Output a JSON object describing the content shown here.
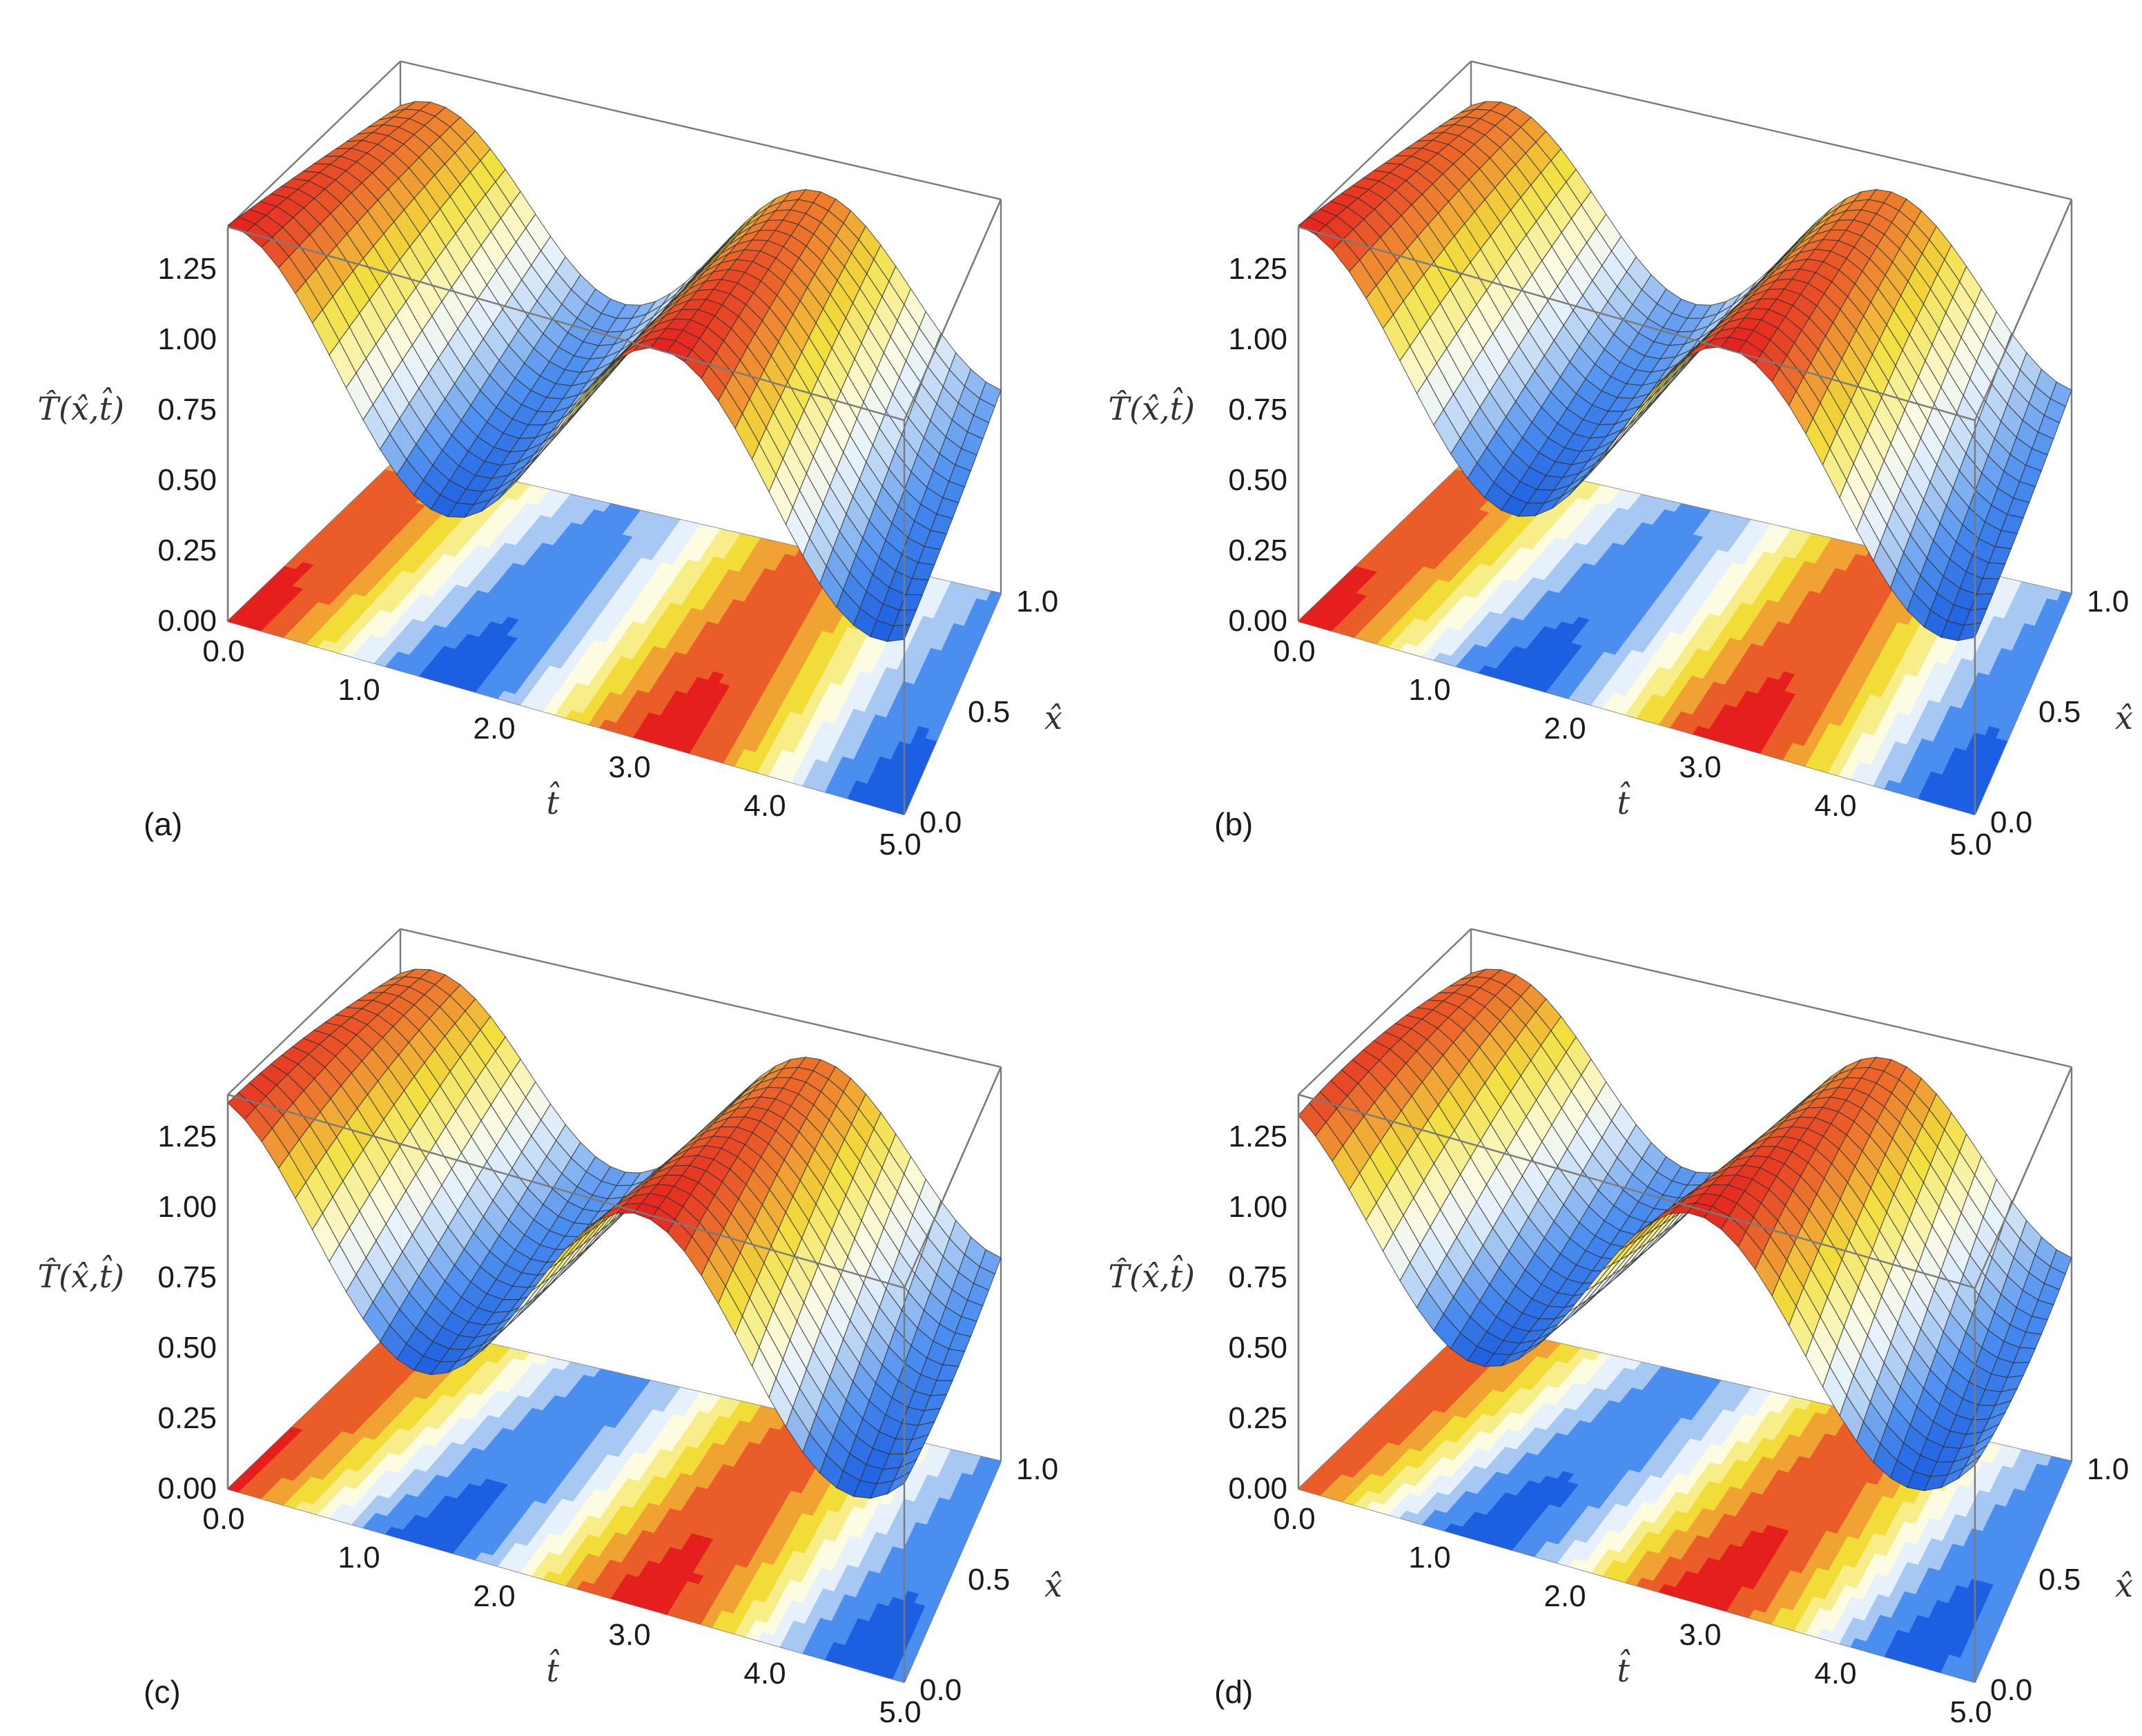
{
  "figure": {
    "panels": [
      {
        "label": "(a)"
      },
      {
        "label": "(b)"
      },
      {
        "label": "(c)"
      },
      {
        "label": "(d)"
      }
    ]
  },
  "chart_data": [
    {
      "type": "surface3d_with_contour",
      "panel": "(a)",
      "zlabel": "T̂(x̂,t̂)",
      "xlabel": "t̂",
      "ylabel": "x̂",
      "t_ticks": [
        "0.0",
        "1.0",
        "2.0",
        "3.0",
        "4.0",
        "5.0"
      ],
      "x_ticks": [
        "0.0",
        "0.5",
        "1.0"
      ],
      "z_ticks": [
        "0.00",
        "0.25",
        "0.50",
        "0.75",
        "1.00",
        "1.25"
      ],
      "t_range": [
        0,
        5
      ],
      "x_range": [
        0,
        1
      ],
      "z_range": [
        0,
        1.4
      ],
      "surface": {
        "base": 1.0,
        "amplitude": 0.28,
        "period": 3.2,
        "phase": 0.0,
        "amp_growth_in_x": 0.45,
        "phase_shift_in_x": 0.5
      },
      "colormap": [
        "#1c5fe0",
        "#4b8ef0",
        "#a6c8f2",
        "#e6f1fb",
        "#fdfbe0",
        "#f7ee8a",
        "#f2dd38",
        "#f0a332",
        "#ea5d28",
        "#e51e1e"
      ]
    },
    {
      "type": "surface3d_with_contour",
      "panel": "(b)",
      "zlabel": "T̂(x̂,t̂)",
      "xlabel": "t̂",
      "ylabel": "x̂",
      "t_ticks": [
        "0.0",
        "1.0",
        "2.0",
        "3.0",
        "4.0",
        "5.0"
      ],
      "x_ticks": [
        "0.0",
        "0.5",
        "1.0"
      ],
      "z_ticks": [
        "0.00",
        "0.25",
        "0.50",
        "0.75",
        "1.00",
        "1.25"
      ],
      "t_range": [
        0,
        5
      ],
      "x_range": [
        0,
        1
      ],
      "z_range": [
        0,
        1.4
      ],
      "surface": {
        "base": 1.0,
        "amplitude": 0.28,
        "period": 3.2,
        "phase": 0.0,
        "amp_growth_in_x": 0.45,
        "phase_shift_in_x": 0.55
      },
      "colormap": [
        "#1c5fe0",
        "#4b8ef0",
        "#a6c8f2",
        "#e6f1fb",
        "#fdfbe0",
        "#f7ee8a",
        "#f2dd38",
        "#f0a332",
        "#ea5d28",
        "#e51e1e"
      ]
    },
    {
      "type": "surface3d_with_contour",
      "panel": "(c)",
      "zlabel": "T̂(x̂,t̂)",
      "xlabel": "t̂",
      "ylabel": "x̂",
      "t_ticks": [
        "0.0",
        "1.0",
        "2.0",
        "3.0",
        "4.0",
        "5.0"
      ],
      "x_ticks": [
        "0.0",
        "0.5",
        "1.0"
      ],
      "z_ticks": [
        "0.00",
        "0.25",
        "0.50",
        "0.75",
        "1.00",
        "1.25"
      ],
      "t_range": [
        0,
        5
      ],
      "x_range": [
        0,
        1
      ],
      "z_range": [
        0,
        1.4
      ],
      "surface": {
        "base": 1.0,
        "amplitude": 0.28,
        "period": 3.2,
        "phase": 0.0,
        "amp_growth_in_x": 0.4,
        "phase_shift_in_x": 0.85
      },
      "colormap": [
        "#1c5fe0",
        "#4b8ef0",
        "#a6c8f2",
        "#e6f1fb",
        "#fdfbe0",
        "#f7ee8a",
        "#f2dd38",
        "#f0a332",
        "#ea5d28",
        "#e51e1e"
      ]
    },
    {
      "type": "surface3d_with_contour",
      "panel": "(d)",
      "zlabel": "T̂(x̂,t̂)",
      "xlabel": "t̂",
      "ylabel": "x̂",
      "t_ticks": [
        "0.0",
        "1.0",
        "2.0",
        "3.0",
        "4.0",
        "5.0"
      ],
      "x_ticks": [
        "0.0",
        "0.5",
        "1.0"
      ],
      "z_ticks": [
        "0.00",
        "0.25",
        "0.50",
        "0.75",
        "1.00",
        "1.25"
      ],
      "t_range": [
        0,
        5
      ],
      "x_range": [
        0,
        1
      ],
      "z_range": [
        0,
        1.4
      ],
      "surface": {
        "base": 1.0,
        "amplitude": 0.28,
        "period": 3.2,
        "phase": 0.0,
        "amp_growth_in_x": 0.35,
        "phase_shift_in_x": 1.05
      },
      "colormap": [
        "#1c5fe0",
        "#4b8ef0",
        "#a6c8f2",
        "#e6f1fb",
        "#fdfbe0",
        "#f7ee8a",
        "#f2dd38",
        "#f0a332",
        "#ea5d28",
        "#e51e1e"
      ]
    }
  ]
}
